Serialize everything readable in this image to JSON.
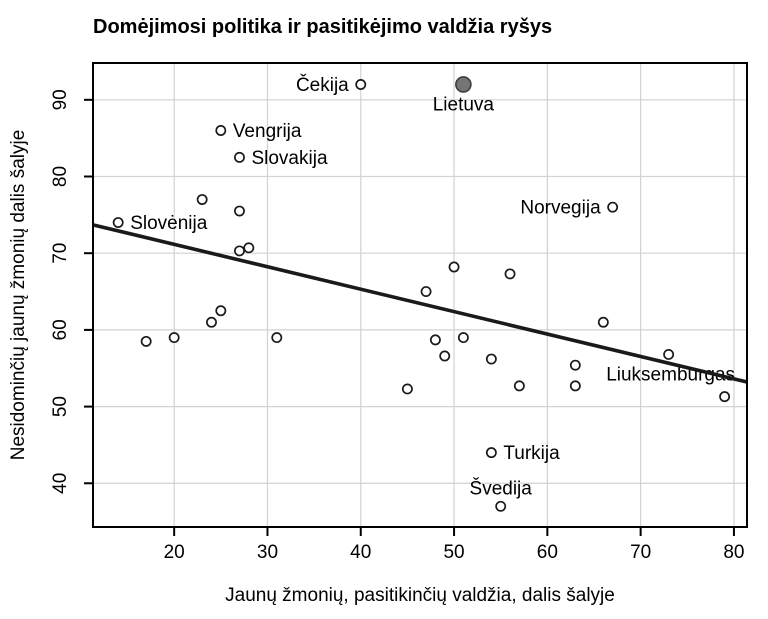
{
  "chart_data": {
    "type": "scatter",
    "title": "Domėjimosi politika ir pasitikėjimo valdžia ryšys",
    "xlabel": "Jaunų žmonių, pasitikinčių valdžia, dalis šalyje",
    "ylabel": "Nesidominčių jaunų žmonių dalis šalyje",
    "xlim": [
      11.3,
      81.4
    ],
    "ylim": [
      34.3,
      94.8
    ],
    "xticks": [
      20,
      30,
      40,
      50,
      60,
      70,
      80
    ],
    "yticks": [
      40,
      50,
      60,
      70,
      80,
      90
    ],
    "grid": true,
    "legend": "none",
    "points": [
      {
        "x": 40,
        "y": 92,
        "label": "Čekija",
        "labelPos": "left"
      },
      {
        "x": 51,
        "y": 92,
        "label": "Lietuva",
        "labelPos": "below",
        "filled": true
      },
      {
        "x": 25,
        "y": 86,
        "label": "Vengrija",
        "labelPos": "right"
      },
      {
        "x": 27,
        "y": 82.5,
        "label": "Slovakija",
        "labelPos": "right"
      },
      {
        "x": 14,
        "y": 74,
        "label": "Slovėnija",
        "labelPos": "right"
      },
      {
        "x": 67,
        "y": 76,
        "label": "Norvegija",
        "labelPos": "left"
      },
      {
        "x": 73,
        "y": 56.8,
        "label": "Liuksemburgas",
        "labelPos": "below-left"
      },
      {
        "x": 54,
        "y": 44,
        "label": "Turkija",
        "labelPos": "right"
      },
      {
        "x": 55,
        "y": 37,
        "label": "Švedija",
        "labelPos": "above"
      },
      {
        "x": 23,
        "y": 77
      },
      {
        "x": 27,
        "y": 75.5
      },
      {
        "x": 17,
        "y": 58.5
      },
      {
        "x": 20,
        "y": 59
      },
      {
        "x": 24,
        "y": 61
      },
      {
        "x": 25,
        "y": 62.5
      },
      {
        "x": 27,
        "y": 70.3
      },
      {
        "x": 28,
        "y": 70.7
      },
      {
        "x": 31,
        "y": 59
      },
      {
        "x": 45,
        "y": 52.3
      },
      {
        "x": 47,
        "y": 65
      },
      {
        "x": 48,
        "y": 58.7
      },
      {
        "x": 49,
        "y": 56.6
      },
      {
        "x": 50,
        "y": 68.2
      },
      {
        "x": 51,
        "y": 59
      },
      {
        "x": 54,
        "y": 56.2
      },
      {
        "x": 56,
        "y": 67.3
      },
      {
        "x": 57,
        "y": 52.7
      },
      {
        "x": 63,
        "y": 55.4
      },
      {
        "x": 63,
        "y": 52.7
      },
      {
        "x": 66,
        "y": 61
      },
      {
        "x": 79,
        "y": 51.3
      }
    ],
    "trendline": {
      "x1": 11.3,
      "y1": 73.7,
      "x2": 81.4,
      "y2": 53.2
    },
    "colors": {
      "background": "#ffffff",
      "text": "#000000",
      "axis": "#000000",
      "grid": "#d2d2d2",
      "trend_line": "#1a1a1a",
      "point_stroke": "#1a1a1a",
      "point_fill": "#ffffff",
      "filled_point_fill": "#757575",
      "filled_point_stroke": "#3d3d3d"
    }
  }
}
